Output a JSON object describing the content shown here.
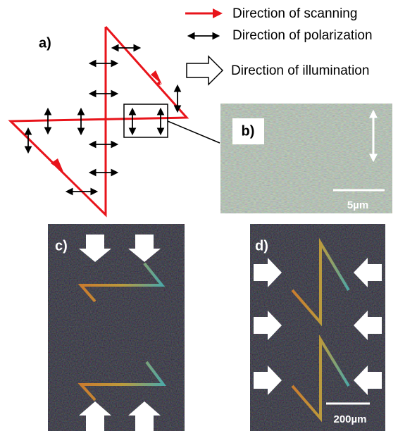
{
  "panel_a": {
    "label": "a)",
    "legend": [
      "Direction of scanning",
      "Direction of polarization",
      "Direction of illumination"
    ]
  },
  "panel_b": {
    "label": "b)",
    "scale_bar": "5µm"
  },
  "panel_c": {
    "label": "c)"
  },
  "panel_d": {
    "label": "d)",
    "scale_bar": "200µm"
  }
}
